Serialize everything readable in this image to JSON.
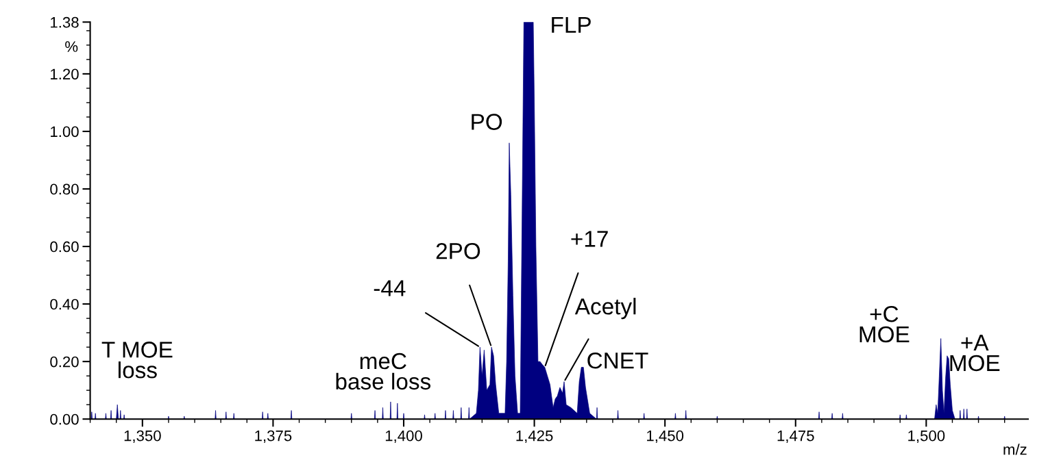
{
  "chart_data": {
    "type": "area",
    "xlabel": "m/z",
    "ylabel": "%",
    "xlim": [
      1340,
      1519.5
    ],
    "ylim": [
      0,
      1.38
    ],
    "xticks": [
      {
        "value": 1350,
        "label": "1,350"
      },
      {
        "value": 1375,
        "label": "1,375"
      },
      {
        "value": 1400,
        "label": "1,400"
      },
      {
        "value": 1425,
        "label": "1,425"
      },
      {
        "value": 1450,
        "label": "1,450"
      },
      {
        "value": 1475,
        "label": "1,475"
      },
      {
        "value": 1500,
        "label": "1,500"
      }
    ],
    "yticks": [
      {
        "value": 0,
        "label": "0.00"
      },
      {
        "value": 0.2,
        "label": "0.20"
      },
      {
        "value": 0.4,
        "label": "0.40"
      },
      {
        "value": 0.6,
        "label": "0.60"
      },
      {
        "value": 0.8,
        "label": "0.80"
      },
      {
        "value": 1.0,
        "label": "1.00"
      },
      {
        "value": 1.2,
        "label": "1.20"
      },
      {
        "value": 1.38,
        "label": "1.38"
      }
    ],
    "grid": false,
    "legend": false,
    "series": [
      {
        "color": "#000080",
        "x": [
          1340.2,
          1340.3,
          1340.4,
          1340.9,
          1341.0,
          1341.1,
          1342.9,
          1343.0,
          1343.1,
          1343.9,
          1344.0,
          1344.1,
          1345.0,
          1345.2,
          1345.4,
          1345.7,
          1345.8,
          1345.9,
          1346.4,
          1346.5,
          1346.6,
          1354.9,
          1355.0,
          1355.1,
          1357.9,
          1358.0,
          1358.1,
          1363.9,
          1364.0,
          1364.1,
          1365.9,
          1366.0,
          1366.1,
          1367.4,
          1367.5,
          1367.6,
          1372.9,
          1373.0,
          1373.1,
          1373.9,
          1374.0,
          1374.1,
          1378.4,
          1378.5,
          1378.6,
          1389.9,
          1390.0,
          1390.1,
          1394.4,
          1394.5,
          1394.6,
          1395.9,
          1396.0,
          1396.1,
          1397.4,
          1397.5,
          1397.6,
          1398.7,
          1398.8,
          1398.9,
          1399.9,
          1400.0,
          1400.1,
          1403.9,
          1404.0,
          1404.1,
          1405.9,
          1406.0,
          1406.1,
          1407.9,
          1408.0,
          1408.1,
          1409.4,
          1409.5,
          1409.6,
          1410.9,
          1411.0,
          1411.1,
          1412.4,
          1412.5,
          1412.6,
          1413.9,
          1414.3,
          1414.6,
          1415.0,
          1415.4,
          1415.9,
          1416.5,
          1416.8,
          1417.2,
          1417.6,
          1418.2,
          1419.4,
          1419.7,
          1420.0,
          1420.2,
          1420.5,
          1420.9,
          1421.3,
          1421.8,
          1422.3,
          1422.6,
          1423.0,
          1424.8,
          1425.0,
          1425.3,
          1425.7,
          1426.1,
          1426.5,
          1427.0,
          1427.5,
          1428.0,
          1428.6,
          1429.0,
          1429.4,
          1429.9,
          1430.4,
          1430.7,
          1431.1,
          1432.0,
          1433.2,
          1433.6,
          1434.0,
          1434.4,
          1434.8,
          1435.6,
          1436.9,
          1437.0,
          1437.1,
          1440.9,
          1441.0,
          1441.1,
          1445.9,
          1446.0,
          1446.1,
          1451.9,
          1452.0,
          1452.1,
          1453.9,
          1454.0,
          1454.1,
          1459.9,
          1460.0,
          1460.1,
          1479.4,
          1479.5,
          1479.6,
          1481.9,
          1482.0,
          1482.1,
          1483.9,
          1484.0,
          1484.1,
          1494.9,
          1495.0,
          1495.1,
          1496.1,
          1496.2,
          1496.3,
          1501.6,
          1501.9,
          1502.2,
          1502.5,
          1502.8,
          1503.1,
          1503.4,
          1503.7,
          1504.0,
          1504.3,
          1504.6,
          1505.0,
          1505.5,
          1506.4,
          1506.5,
          1506.6,
          1507.1,
          1507.2,
          1507.3,
          1507.7,
          1507.8,
          1507.9,
          1509.9,
          1510.0,
          1510.1,
          1514.9,
          1515.0,
          1515.1
        ],
        "values": [
          0,
          0.025,
          0,
          0,
          0.02,
          0,
          0,
          0.02,
          0,
          0,
          0.03,
          0,
          0,
          0.05,
          0,
          0,
          0.03,
          0,
          0,
          0.015,
          0,
          0,
          0.01,
          0,
          0,
          0.01,
          0,
          0,
          0.03,
          0,
          0,
          0.025,
          0,
          0,
          0.02,
          0,
          0,
          0.025,
          0,
          0,
          0.02,
          0,
          0,
          0.03,
          0,
          0,
          0.02,
          0,
          0,
          0.03,
          0,
          0,
          0.04,
          0,
          0,
          0.06,
          0,
          0,
          0.055,
          0,
          0,
          0.02,
          0,
          0,
          0.015,
          0,
          0,
          0.02,
          0,
          0,
          0.03,
          0,
          0,
          0.03,
          0,
          0,
          0.04,
          0,
          0,
          0.04,
          0,
          0.02,
          0.1,
          0.25,
          0.15,
          0.24,
          0.1,
          0.12,
          0.25,
          0.22,
          0.12,
          0.02,
          0.02,
          0.2,
          0.55,
          0.96,
          0.78,
          0.43,
          0.15,
          0.02,
          0.02,
          0.6,
          1.38,
          1.38,
          1.1,
          0.6,
          0.2,
          0.2,
          0.19,
          0.18,
          0.15,
          0.12,
          0.04,
          0.07,
          0.08,
          0.11,
          0.09,
          0.13,
          0.05,
          0.04,
          0.02,
          0.13,
          0.18,
          0.18,
          0.11,
          0.02,
          0,
          0.04,
          0,
          0,
          0.03,
          0,
          0,
          0.02,
          0,
          0,
          0.02,
          0,
          0,
          0.03,
          0,
          0,
          0.01,
          0,
          0,
          0.025,
          0,
          0,
          0.02,
          0,
          0,
          0.02,
          0,
          0,
          0.015,
          0,
          0,
          0.015,
          0,
          0,
          0.05,
          0.02,
          0.15,
          0.28,
          0.1,
          0.02,
          0.14,
          0.22,
          0.21,
          0.12,
          0.03,
          0,
          0,
          0.03,
          0,
          0,
          0.035,
          0,
          0,
          0.035,
          0,
          0,
          0.01,
          0,
          0,
          0.01,
          0
        ]
      }
    ],
    "annotations": [
      {
        "text": "T MOE\nloss",
        "x": 1345.2,
        "y": 0.05
      },
      {
        "text": "meC\nbase loss",
        "x": 1397.5,
        "y": 0.06
      },
      {
        "text": "-44",
        "x": 1414.6,
        "y": 0.25
      },
      {
        "text": "2PO",
        "x": 1416.8,
        "y": 0.25
      },
      {
        "text": "PO",
        "x": 1420.2,
        "y": 0.96
      },
      {
        "text": "FLP",
        "x": 1424.0,
        "y": 1.38
      },
      {
        "text": "+17",
        "x": 1427.0,
        "y": 0.18
      },
      {
        "text": "Acetyl",
        "x": 1430.7,
        "y": 0.13
      },
      {
        "text": "CNET",
        "x": 1434.0,
        "y": 0.18
      },
      {
        "text": "+C\nMOE",
        "x": 1502.5,
        "y": 0.28
      },
      {
        "text": "+A\nMOE",
        "x": 1504.5,
        "y": 0.22
      }
    ]
  }
}
